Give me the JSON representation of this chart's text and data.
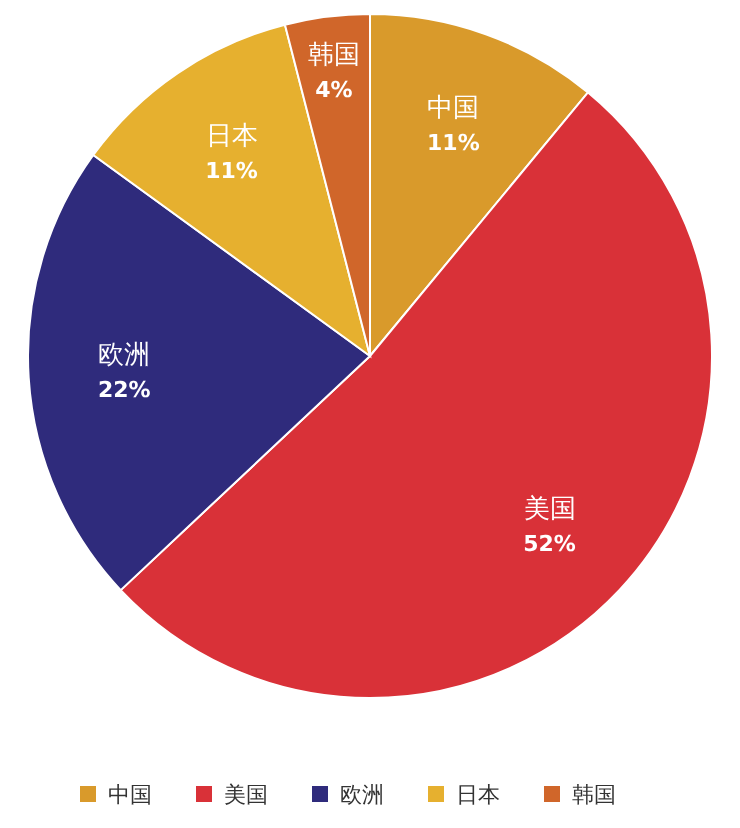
{
  "chart_data": {
    "type": "pie",
    "categories": [
      "中国",
      "美国",
      "欧洲",
      "日本",
      "韩国"
    ],
    "values": [
      11,
      52,
      22,
      11,
      4
    ],
    "colors": [
      "#d99a2b",
      "#d93138",
      "#2f2b7c",
      "#e6b02f",
      "#d0662a"
    ],
    "value_labels": [
      "11%",
      "52%",
      "22%",
      "11%",
      "4%"
    ],
    "legend": "bottom"
  }
}
